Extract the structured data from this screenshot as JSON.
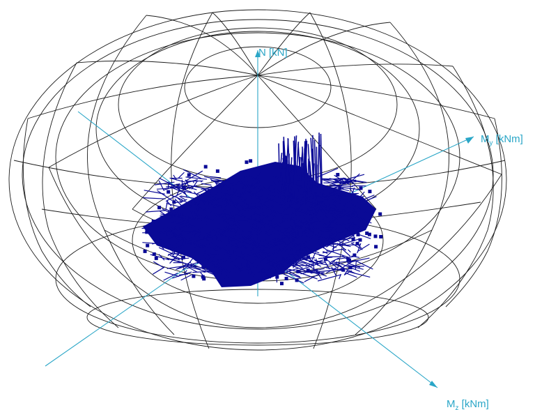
{
  "axes": {
    "n": {
      "main": "N [kN]"
    },
    "my": {
      "main": "M",
      "sub": "y",
      "unit": " [kNm]"
    },
    "mz": {
      "main": "M",
      "sub": "z",
      "unit": " [kNm]"
    }
  },
  "colors": {
    "background": "#ffffff",
    "mesh": "#1a1a1a",
    "axes": "#2aa6c7",
    "load_cloud": "#0a0a96"
  }
}
